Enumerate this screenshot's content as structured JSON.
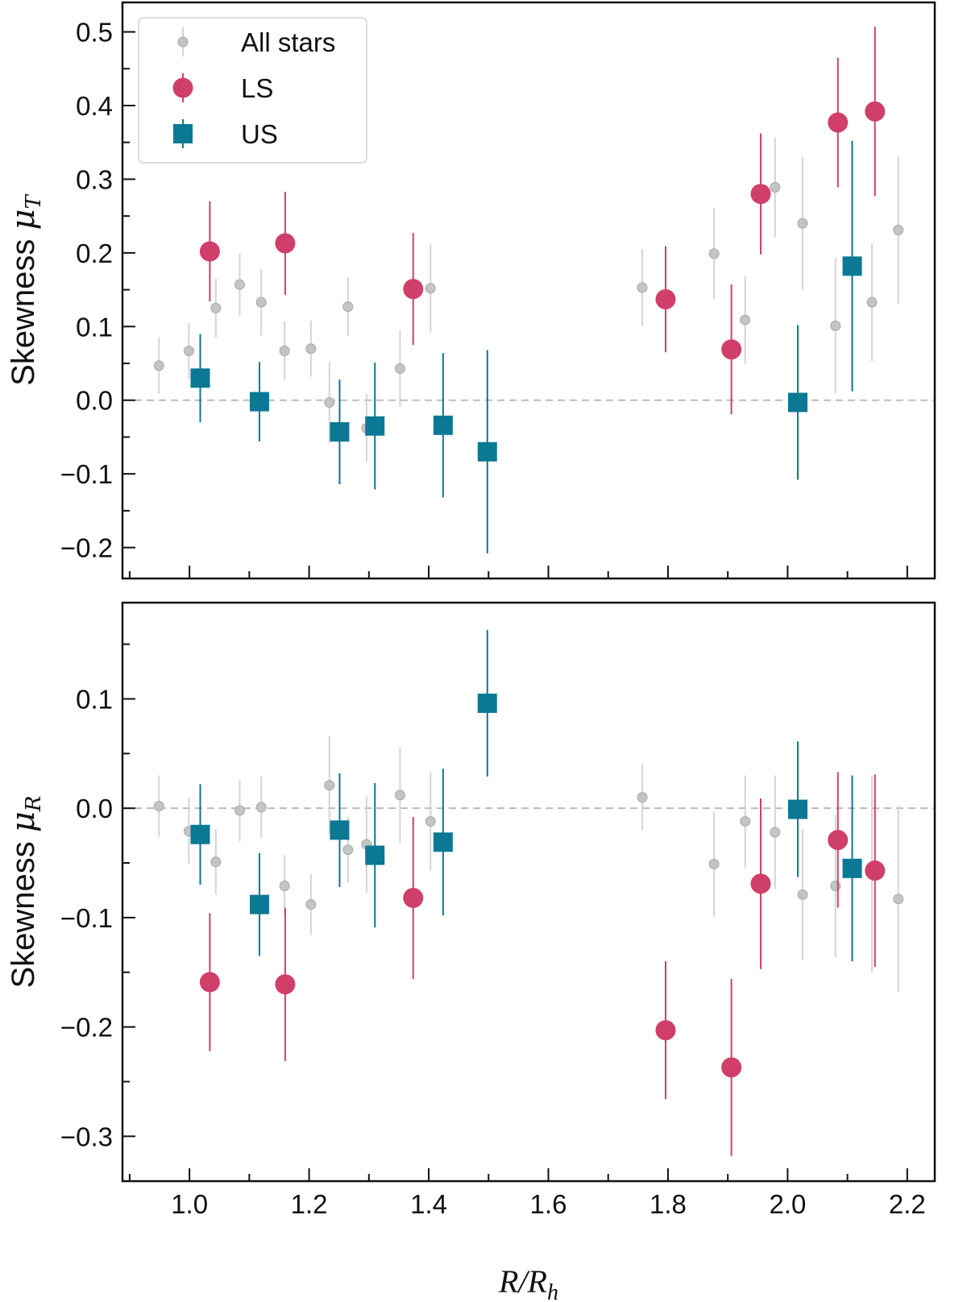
{
  "chart_data": [
    {
      "type": "scatter",
      "panel": "top",
      "ylabel": "Skewness μ_T",
      "ylabel_main": "Skewness ",
      "ylabel_sym": "μ",
      "ylabel_sub": "T",
      "xlim": [
        0.888,
        2.246
      ],
      "ylim": [
        -0.242,
        0.54
      ],
      "yticks": [
        -0.2,
        -0.1,
        0.0,
        0.1,
        0.2,
        0.3,
        0.4,
        0.5
      ],
      "ytick_labels": [
        "−0.2",
        "−0.1",
        "0.0",
        "0.1",
        "0.2",
        "0.3",
        "0.4",
        "0.5"
      ],
      "reference_line": 0.0,
      "legend": {
        "placement": "top-left",
        "entries": [
          "All stars",
          "LS",
          "US"
        ]
      },
      "series": [
        {
          "name": "All stars",
          "color": "#b4b4b4",
          "marker": "circle-small",
          "x": [
            0.949,
            0.999,
            1.044,
            1.084,
            1.12,
            1.159,
            1.203,
            1.234,
            1.265,
            1.296,
            1.352,
            1.403,
            1.757,
            1.877,
            1.929,
            1.979,
            2.025,
            2.08,
            2.141,
            2.185
          ],
          "y": [
            0.047,
            0.067,
            0.125,
            0.157,
            0.133,
            0.067,
            0.07,
            -0.003,
            0.127,
            -0.038,
            0.043,
            0.152,
            0.153,
            0.199,
            0.109,
            0.289,
            0.24,
            0.101,
            0.133,
            0.231
          ],
          "yerr": [
            0.038,
            0.038,
            0.04,
            0.042,
            0.045,
            0.04,
            0.038,
            0.055,
            0.04,
            0.046,
            0.052,
            0.06,
            0.052,
            0.062,
            0.06,
            0.068,
            0.09,
            0.092,
            0.08,
            0.1
          ]
        },
        {
          "name": "LS",
          "color": "#cf3f6a",
          "marker": "circle",
          "x": [
            1.034,
            1.16,
            1.374,
            1.796,
            1.906,
            1.955,
            2.084,
            2.146
          ],
          "y": [
            0.202,
            0.213,
            0.151,
            0.137,
            0.069,
            0.28,
            0.377,
            0.392
          ],
          "yerr": [
            0.068,
            0.07,
            0.076,
            0.072,
            0.088,
            0.082,
            0.088,
            0.115
          ]
        },
        {
          "name": "US",
          "color": "#0b7894",
          "marker": "square",
          "x": [
            1.018,
            1.117,
            1.251,
            1.31,
            1.424,
            1.498,
            2.017,
            2.108
          ],
          "y": [
            0.03,
            -0.002,
            -0.043,
            -0.035,
            -0.034,
            -0.07,
            -0.003,
            0.182
          ],
          "yerr": [
            0.06,
            0.054,
            0.071,
            0.086,
            0.098,
            0.138,
            0.105,
            0.17
          ]
        }
      ]
    },
    {
      "type": "scatter",
      "panel": "bottom",
      "ylabel": "Skewness μ_R",
      "ylabel_main": "Skewness ",
      "ylabel_sym": "μ",
      "ylabel_sub": "R",
      "xlabel": "R/R_h",
      "xlabel_R": "R/R",
      "xlabel_sub": "h",
      "xlim": [
        0.888,
        2.246
      ],
      "ylim": [
        -0.341,
        0.188
      ],
      "xticks": [
        1.0,
        1.2,
        1.4,
        1.6,
        1.8,
        2.0,
        2.2
      ],
      "xtick_labels": [
        "1.0",
        "1.2",
        "1.4",
        "1.6",
        "1.8",
        "2.0",
        "2.2"
      ],
      "yticks": [
        -0.3,
        -0.2,
        -0.1,
        0.0,
        0.1
      ],
      "ytick_labels": [
        "−0.3",
        "−0.2",
        "−0.1",
        "0.0",
        "0.1"
      ],
      "reference_line": 0.0,
      "series": [
        {
          "name": "All stars",
          "color": "#b4b4b4",
          "marker": "circle-small",
          "x": [
            0.949,
            0.999,
            1.044,
            1.084,
            1.12,
            1.159,
            1.203,
            1.234,
            1.265,
            1.296,
            1.352,
            1.403,
            1.757,
            1.877,
            1.929,
            1.979,
            2.025,
            2.08,
            2.141,
            2.185
          ],
          "y": [
            0.002,
            -0.021,
            -0.049,
            -0.002,
            0.001,
            -0.071,
            -0.088,
            0.021,
            -0.038,
            -0.033,
            0.012,
            -0.012,
            0.01,
            -0.051,
            -0.012,
            -0.022,
            -0.079,
            -0.071,
            -0.06,
            -0.083
          ],
          "yerr": [
            0.028,
            0.03,
            0.03,
            0.028,
            0.028,
            0.028,
            0.028,
            0.045,
            0.03,
            0.044,
            0.044,
            0.045,
            0.03,
            0.048,
            0.042,
            0.052,
            0.06,
            0.065,
            0.09,
            0.085
          ]
        },
        {
          "name": "LS",
          "color": "#cf3f6a",
          "marker": "circle",
          "x": [
            1.034,
            1.16,
            1.374,
            1.796,
            1.906,
            1.955,
            2.084,
            2.146
          ],
          "y": [
            -0.159,
            -0.161,
            -0.082,
            -0.203,
            -0.237,
            -0.069,
            -0.029,
            -0.057
          ],
          "yerr": [
            0.063,
            0.07,
            0.074,
            0.063,
            0.081,
            0.078,
            0.062,
            0.088
          ]
        },
        {
          "name": "US",
          "color": "#0b7894",
          "marker": "square",
          "x": [
            1.018,
            1.117,
            1.251,
            1.31,
            1.424,
            1.498,
            2.017,
            2.108
          ],
          "y": [
            -0.024,
            -0.088,
            -0.02,
            -0.043,
            -0.031,
            0.096,
            -0.001,
            -0.055
          ],
          "yerr": [
            0.046,
            0.047,
            0.052,
            0.066,
            0.067,
            0.067,
            0.062,
            0.085
          ]
        }
      ]
    }
  ]
}
